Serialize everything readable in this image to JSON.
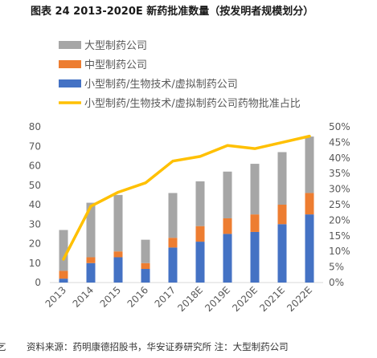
{
  "title": "图表 24 2013-2020E 新药批准数量（按发明者规模划分）",
  "source": "资料来源：药明康德招股书，华安证券研究所 注：大型制药公司",
  "left_fragment": "乞",
  "colors": {
    "large": "#a6a6a6",
    "medium": "#ed7d31",
    "small": "#4472c4",
    "line": "#ffc000",
    "axis": "#d9d9d9",
    "text": "#595959"
  },
  "chart_data": {
    "type": "bar",
    "stacked": true,
    "categories": [
      "2013",
      "2014",
      "2015",
      "2016",
      "2017",
      "2018E",
      "2019E",
      "2020E",
      "2021E",
      "2022E"
    ],
    "series": [
      {
        "name": "大型制药公司",
        "key": "large",
        "values": [
          21,
          28,
          29,
          12,
          23,
          23,
          24,
          26,
          27,
          29
        ]
      },
      {
        "name": "中型制药公司",
        "key": "medium",
        "values": [
          4,
          3,
          3,
          3,
          5,
          8,
          8,
          9,
          10,
          11
        ]
      },
      {
        "name": "小型制药/生物技术/虚拟制药公司",
        "key": "small",
        "values": [
          2,
          10,
          13,
          7,
          18,
          21,
          25,
          26,
          30,
          35
        ]
      }
    ],
    "line_series": {
      "name": "小型制药/生物技术/虚拟制药公司药物批准占比",
      "axis": "right",
      "values": [
        7.5,
        24.5,
        29,
        32,
        39,
        40.5,
        44,
        43,
        45,
        47
      ]
    },
    "y_left": {
      "min": 0,
      "max": 80,
      "ticks": [
        "0",
        "10",
        "20",
        "30",
        "40",
        "50",
        "60",
        "70",
        "80"
      ]
    },
    "y_right": {
      "min": 0,
      "max": 50,
      "ticks": [
        "0%",
        "5%",
        "10%",
        "15%",
        "20%",
        "25%",
        "30%",
        "35%",
        "40%",
        "45%",
        "50%"
      ]
    },
    "legend_position": "top-left",
    "grid": false
  }
}
